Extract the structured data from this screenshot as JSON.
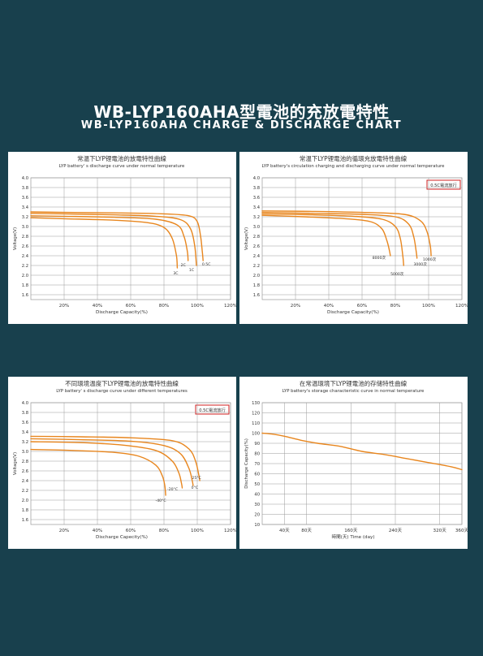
{
  "page": {
    "title_cn": "WB-LYP160AHA型電池的充放電特性",
    "title_en": "WB-LYP160AHA CHARGE & DISCHARGE CHART",
    "background": "#18404d",
    "curve_color": "#e8861e",
    "tag_color": "#d21f1f"
  },
  "chart_data": [
    {
      "type": "line",
      "title": "常温下LYP锂電池的放電特性曲線",
      "subtitle": "LYP battery' s discharge curve under normal temperature",
      "xlabel": "Discharge Capacity(%)",
      "ylabel": "Voltage(V)",
      "xlim": [
        0,
        120
      ],
      "ylim": [
        1.5,
        4.0
      ],
      "x_ticks": [
        "20%",
        "40%",
        "60%",
        "80%",
        "100%",
        "120%"
      ],
      "y_ticks": [
        "1.6",
        "1.8",
        "2.0",
        "2.2",
        "2.4",
        "2.6",
        "2.8",
        "3.0",
        "3.2",
        "3.4",
        "3.6",
        "3.8",
        "4.0"
      ],
      "grid": true,
      "series": [
        {
          "name": "0.5C",
          "values": [
            [
              0,
              3.3
            ],
            [
              20,
              3.29
            ],
            [
              50,
              3.28
            ],
            [
              80,
              3.26
            ],
            [
              95,
              3.22
            ],
            [
              100,
              3.1
            ],
            [
              102,
              2.8
            ],
            [
              103,
              2.5
            ],
            [
              103.5,
              2.3
            ]
          ]
        },
        {
          "name": "1C",
          "values": [
            [
              0,
              3.27
            ],
            [
              20,
              3.26
            ],
            [
              50,
              3.24
            ],
            [
              75,
              3.21
            ],
            [
              90,
              3.14
            ],
            [
              96,
              2.95
            ],
            [
              98.5,
              2.6
            ],
            [
              99.5,
              2.2
            ]
          ]
        },
        {
          "name": "2C",
          "values": [
            [
              0,
              3.22
            ],
            [
              20,
              3.21
            ],
            [
              50,
              3.19
            ],
            [
              75,
              3.15
            ],
            [
              88,
              3.03
            ],
            [
              92,
              2.8
            ],
            [
              94,
              2.5
            ],
            [
              94.5,
              2.3
            ]
          ]
        },
        {
          "name": "3C",
          "values": [
            [
              0,
              3.18
            ],
            [
              20,
              3.16
            ],
            [
              50,
              3.13
            ],
            [
              70,
              3.08
            ],
            [
              80,
              2.98
            ],
            [
              85,
              2.75
            ],
            [
              87.5,
              2.4
            ],
            [
              88,
              2.15
            ]
          ]
        }
      ]
    },
    {
      "type": "line",
      "title": "常温下LYP锂電池的循環充放電特性曲線",
      "subtitle": "LYP battery's circulation charging and discharging curve under normal temperature",
      "xlabel": "Discharge Capacity(%)",
      "ylabel": "Voltage(V)",
      "tag": "0.5C電流放行",
      "xlim": [
        0,
        120
      ],
      "ylim": [
        1.5,
        4.0
      ],
      "x_ticks": [
        "20%",
        "40%",
        "60%",
        "80%",
        "100%",
        "120%"
      ],
      "y_ticks": [
        "1.6",
        "1.8",
        "2.0",
        "2.2",
        "2.4",
        "2.6",
        "2.8",
        "3.0",
        "3.2",
        "3.4",
        "3.6",
        "3.8",
        "4.0"
      ],
      "grid": true,
      "series": [
        {
          "name": "1000次",
          "values": [
            [
              0,
              3.32
            ],
            [
              30,
              3.31
            ],
            [
              60,
              3.29
            ],
            [
              85,
              3.25
            ],
            [
              95,
              3.12
            ],
            [
              99,
              2.9
            ],
            [
              101,
              2.6
            ],
            [
              101.5,
              2.4
            ]
          ]
        },
        {
          "name": "3000次",
          "values": [
            [
              0,
              3.29
            ],
            [
              30,
              3.27
            ],
            [
              60,
              3.25
            ],
            [
              80,
              3.2
            ],
            [
              88,
              3.05
            ],
            [
              91,
              2.8
            ],
            [
              92.5,
              2.5
            ],
            [
              93,
              2.35
            ]
          ]
        },
        {
          "name": "5000次",
          "values": [
            [
              0,
              3.26
            ],
            [
              30,
              3.24
            ],
            [
              55,
              3.21
            ],
            [
              72,
              3.15
            ],
            [
              80,
              3.0
            ],
            [
              83,
              2.75
            ],
            [
              84.5,
              2.4
            ],
            [
              85,
              2.2
            ]
          ]
        },
        {
          "name": "8000次",
          "values": [
            [
              0,
              3.23
            ],
            [
              25,
              3.2
            ],
            [
              50,
              3.16
            ],
            [
              65,
              3.1
            ],
            [
              72,
              2.95
            ],
            [
              75,
              2.7
            ],
            [
              76.5,
              2.5
            ],
            [
              77,
              2.4
            ]
          ]
        }
      ]
    },
    {
      "type": "line",
      "title": "不同環境温度下LYP锂電池的放電特性曲線",
      "subtitle": "LYP battery' s discharge curve under different temperatures",
      "xlabel": "Discharge Capecity(%)",
      "ylabel": "Voltage(V)",
      "tag": "0.5C電流放行",
      "xlim": [
        0,
        120
      ],
      "ylim": [
        1.5,
        4.0
      ],
      "x_ticks": [
        "20%",
        "40%",
        "60%",
        "80%",
        "100%",
        "120%"
      ],
      "y_ticks": [
        "1.6",
        "1.8",
        "2.0",
        "2.2",
        "2.4",
        "2.6",
        "2.8",
        "3.0",
        "3.2",
        "3.4",
        "3.6",
        "3.8",
        "4.0"
      ],
      "grid": true,
      "series": [
        {
          "name": "25°C",
          "values": [
            [
              0,
              3.31
            ],
            [
              30,
              3.3
            ],
            [
              60,
              3.28
            ],
            [
              85,
              3.22
            ],
            [
              95,
              3.05
            ],
            [
              99,
              2.8
            ],
            [
              101,
              2.5
            ],
            [
              101.5,
              2.4
            ]
          ]
        },
        {
          "name": "0°C",
          "values": [
            [
              0,
              3.26
            ],
            [
              30,
              3.24
            ],
            [
              60,
              3.21
            ],
            [
              80,
              3.12
            ],
            [
              90,
              2.95
            ],
            [
              95,
              2.65
            ],
            [
              97,
              2.4
            ],
            [
              97.5,
              2.3
            ]
          ]
        },
        {
          "name": "-20°C",
          "values": [
            [
              0,
              3.2
            ],
            [
              30,
              3.18
            ],
            [
              55,
              3.13
            ],
            [
              75,
              3.02
            ],
            [
              85,
              2.8
            ],
            [
              89,
              2.55
            ],
            [
              90.5,
              2.35
            ],
            [
              91,
              2.25
            ]
          ]
        },
        {
          "name": "-40°C",
          "values": [
            [
              0,
              3.04
            ],
            [
              25,
              3.02
            ],
            [
              50,
              2.98
            ],
            [
              65,
              2.9
            ],
            [
              75,
              2.72
            ],
            [
              79,
              2.5
            ],
            [
              80.5,
              2.3
            ],
            [
              81,
              2.1
            ]
          ]
        }
      ]
    },
    {
      "type": "line",
      "title": "在常温環境下LYP锂電池的存储特性曲線",
      "subtitle": "LYP battery's storage characteristic curve in normal temperature",
      "xlabel": "時間(天) Time (day)",
      "ylabel": "Discharge Capacity(%)",
      "xlim": [
        0,
        360
      ],
      "ylim": [
        10,
        130
      ],
      "x_ticks": [
        "40天",
        "80天",
        "160天",
        "240天",
        "320天",
        "360天"
      ],
      "y_ticks": [
        "10",
        "20",
        "30",
        "40",
        "50",
        "60",
        "70",
        "80",
        "90",
        "100",
        "110",
        "120",
        "130"
      ],
      "grid": true,
      "series": [
        {
          "values": [
            [
              0,
              100
            ],
            [
              20,
              99
            ],
            [
              40,
              97
            ],
            [
              70,
              93
            ],
            [
              100,
              90
            ],
            [
              140,
              87
            ],
            [
              180,
              82
            ],
            [
              220,
              79
            ],
            [
              260,
              75
            ],
            [
              300,
              71
            ],
            [
              340,
              67
            ],
            [
              360,
              64
            ]
          ]
        }
      ]
    }
  ]
}
